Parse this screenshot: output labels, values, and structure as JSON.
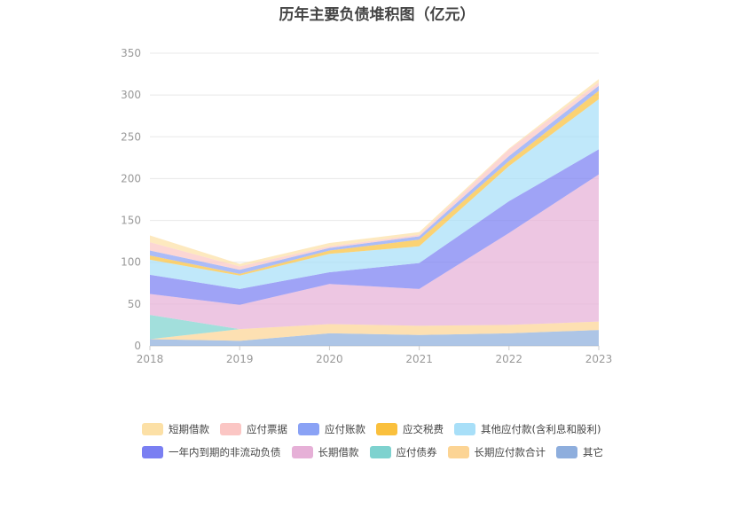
{
  "title": "历年主要负债堆积图（亿元）",
  "chart_data": {
    "type": "area",
    "stacked": true,
    "x": [
      "2018",
      "2019",
      "2020",
      "2021",
      "2022",
      "2023"
    ],
    "ylim": [
      0,
      350
    ],
    "yticks": [
      0,
      50,
      100,
      150,
      200,
      250,
      300,
      350
    ],
    "grid": true,
    "legend_position": "bottom",
    "series": [
      {
        "name": "其它",
        "color": "#8eaedd",
        "values": [
          8,
          6,
          15,
          13,
          15,
          19
        ]
      },
      {
        "name": "长期应付款合计",
        "color": "#fcd494",
        "values": [
          0,
          14,
          11,
          11,
          10,
          10
        ]
      },
      {
        "name": "应付债券",
        "color": "#7ed2cf",
        "values": [
          29,
          0,
          0,
          0,
          0,
          0
        ]
      },
      {
        "name": "长期借款",
        "color": "#e6b0d7",
        "values": [
          25,
          29,
          48,
          44,
          110,
          176
        ]
      },
      {
        "name": "一年内到期的非流动负债",
        "color": "#7a7ff2",
        "values": [
          23,
          19,
          14,
          31,
          38,
          30
        ]
      },
      {
        "name": "其他应付款(含利息和股利)",
        "color": "#a8dff8",
        "values": [
          18,
          16,
          22,
          20,
          42,
          60
        ]
      },
      {
        "name": "应交税费",
        "color": "#fac03d",
        "values": [
          5,
          2,
          4,
          8,
          6,
          10
        ]
      },
      {
        "name": "应付账款",
        "color": "#8aa2f5",
        "values": [
          6,
          5,
          3,
          4,
          6,
          6
        ]
      },
      {
        "name": "应付票据",
        "color": "#fbc6c4",
        "values": [
          10,
          4,
          2,
          2,
          8,
          4
        ]
      },
      {
        "name": "短期借款",
        "color": "#fce0a6",
        "values": [
          8,
          3,
          4,
          3,
          1,
          4
        ]
      }
    ],
    "legend_order": [
      "短期借款",
      "应付票据",
      "应付账款",
      "应交税费",
      "其他应付款(含利息和股利)",
      "一年内到期的非流动负债",
      "长期借款",
      "应付债券",
      "长期应付款合计",
      "其它"
    ]
  }
}
